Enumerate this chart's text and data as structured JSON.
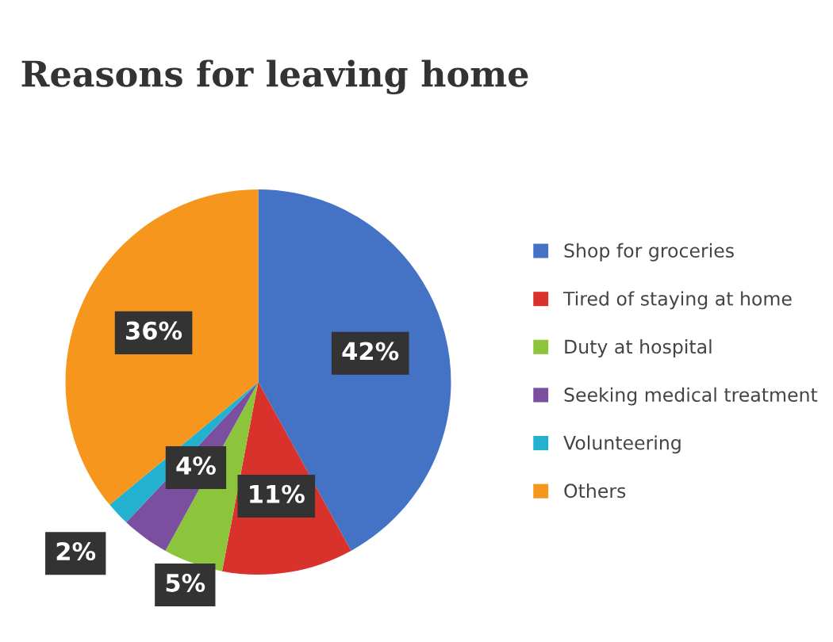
{
  "chart_data": {
    "type": "pie",
    "title": "Reasons for leaving home",
    "categories": [
      "Shop for groceries",
      "Tired of staying at home",
      "Duty at hospital",
      "Seeking medical treatment",
      "Volunteering",
      "Others"
    ],
    "values": [
      42,
      11,
      5,
      4,
      2,
      36
    ],
    "colors": [
      "#4472c4",
      "#d9312b",
      "#8cc43c",
      "#7a4fa0",
      "#22b2cf",
      "#f7961c"
    ],
    "value_labels": [
      "42%",
      "11%",
      "5%",
      "4%",
      "2%",
      "36%"
    ],
    "legend": "right"
  }
}
